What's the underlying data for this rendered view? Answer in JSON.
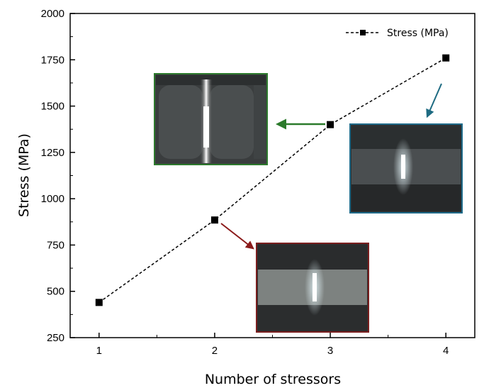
{
  "chart_data": {
    "type": "line",
    "xlabel": "Number of stressors",
    "ylabel": "Stress (MPa)",
    "x": [
      1,
      2,
      3,
      4
    ],
    "xlim": [
      0.75,
      4.25
    ],
    "ylim": [
      250,
      2000
    ],
    "x_ticks": [
      "1",
      "2",
      "3",
      "4"
    ],
    "y_ticks": [
      "250",
      "500",
      "750",
      "1000",
      "1250",
      "1500",
      "1750",
      "2000"
    ],
    "series": [
      {
        "name": "Stress (MPa)",
        "values": [
          440,
          885,
          1400,
          1760
        ],
        "line_style": "dashed",
        "marker": "square",
        "color": "#000000"
      }
    ],
    "legend_position": "top-right",
    "grid": false,
    "insets": [
      {
        "attached_to_x": 2,
        "frame_color": "#7a1f1f",
        "arrow_color": "#8b1a1a"
      },
      {
        "attached_to_x": 3,
        "frame_color": "#2d7a2d",
        "arrow_color": "#2b7a2b"
      },
      {
        "attached_to_x": 4,
        "frame_color": "#1f6b8a",
        "arrow_color": "#1e6b82"
      }
    ]
  }
}
